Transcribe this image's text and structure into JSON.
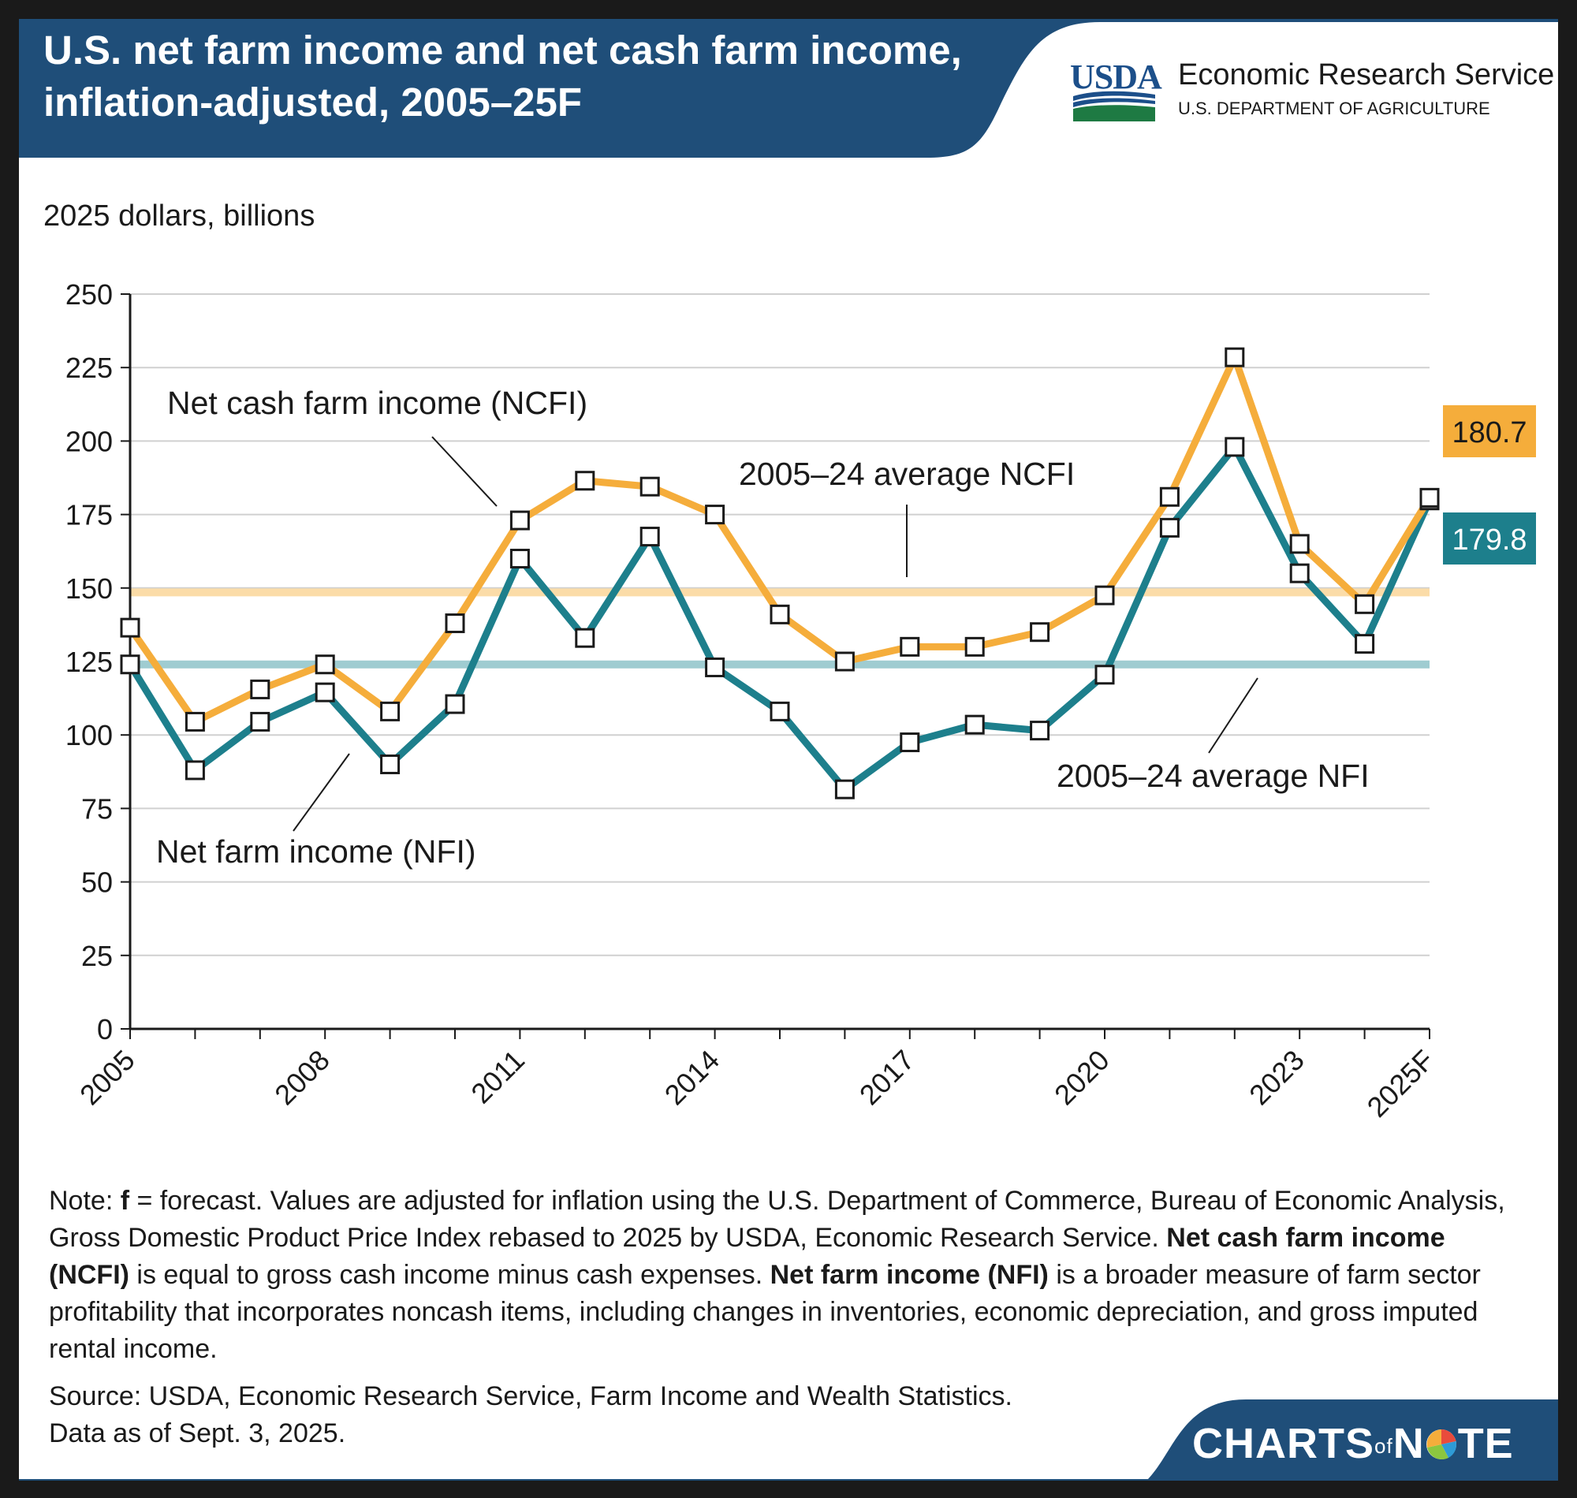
{
  "header": {
    "title_line1": "U.S. net farm income and net cash farm income,",
    "title_line2": "inflation-adjusted, 2005–25F"
  },
  "logo": {
    "usda_text": "USDA",
    "agency_name": "Economic Research Service",
    "department": "U.S. DEPARTMENT OF AGRICULTURE"
  },
  "colors": {
    "header_bg": "#1f4e79",
    "ncfi": "#f5ad3b",
    "nfi": "#1d7f8c",
    "ncfi_avg": "#fbdca8",
    "nfi_avg": "#9fccd1",
    "grid": "#d0d0d0"
  },
  "chart_data": {
    "type": "line",
    "ylabel": "2025 dollars, billions",
    "ylim": [
      0,
      250
    ],
    "yticks": [
      "0",
      "25",
      "50",
      "75",
      "100",
      "125",
      "150",
      "175",
      "200",
      "225",
      "250"
    ],
    "x": [
      "2005",
      "2006",
      "2007",
      "2008",
      "2009",
      "2010",
      "2011",
      "2012",
      "2013",
      "2014",
      "2015",
      "2016",
      "2017",
      "2018",
      "2019",
      "2020",
      "2021",
      "2022",
      "2023",
      "2024",
      "2025F"
    ],
    "xtick_labels": [
      "2005",
      "2008",
      "2011",
      "2014",
      "2017",
      "2020",
      "2023",
      "2025F"
    ],
    "series": [
      {
        "name": "Net cash farm income (NCFI)",
        "color": "#f5ad3b",
        "values": [
          136.5,
          104.5,
          115.5,
          124.0,
          108.0,
          138.0,
          173.0,
          186.5,
          184.5,
          175.0,
          141.0,
          125.0,
          130.0,
          130.0,
          135.0,
          147.5,
          181.0,
          228.5,
          165.0,
          144.5,
          180.7
        ]
      },
      {
        "name": "Net farm income (NFI)",
        "color": "#1d7f8c",
        "values": [
          124.0,
          88.0,
          104.5,
          114.5,
          90.0,
          110.5,
          160.0,
          133.0,
          167.5,
          123.0,
          108.0,
          81.5,
          97.5,
          103.5,
          101.5,
          120.5,
          170.5,
          198.0,
          155.0,
          131.0,
          179.8
        ]
      }
    ],
    "reference_lines": [
      {
        "name": "2005–24 average NCFI",
        "value": 148.5
      },
      {
        "name": "2005–24 average NFI",
        "value": 124.0
      }
    ],
    "annotations": {
      "ncfi_label": "Net cash farm income (NCFI)",
      "nfi_label": "Net farm income (NFI)",
      "ncfi_avg_label": "2005–24 average NCFI",
      "nfi_avg_label": "2005–24 average NFI",
      "ncfi_end_value": "180.7",
      "nfi_end_value": "179.8"
    }
  },
  "note": {
    "p1": "Note: ",
    "f_bold": "f",
    "p2": " = forecast. Values are adjusted for inflation using the U.S. Department of Commerce, Bureau of Economic Analysis, Gross Domestic Product Price Index rebased to 2025 by USDA, Economic Research Service. ",
    "ncfi_bold": "Net cash farm income (NCFI)",
    "p3": " is equal to gross cash income minus cash expenses. ",
    "nfi_bold": "Net farm income (NFI)",
    "p4": " is a broader measure of farm sector profitability that incorporates noncash items, including changes in inventories, economic depreciation, and gross imputed rental income."
  },
  "source": {
    "line1": "Source: USDA, Economic Research Service, Farm Income and Wealth Statistics.",
    "line2": "Data as of Sept. 3, 2025."
  },
  "brand": {
    "part1": "CHARTS",
    "part2": "of",
    "part3": "N",
    "part4": "TE"
  }
}
